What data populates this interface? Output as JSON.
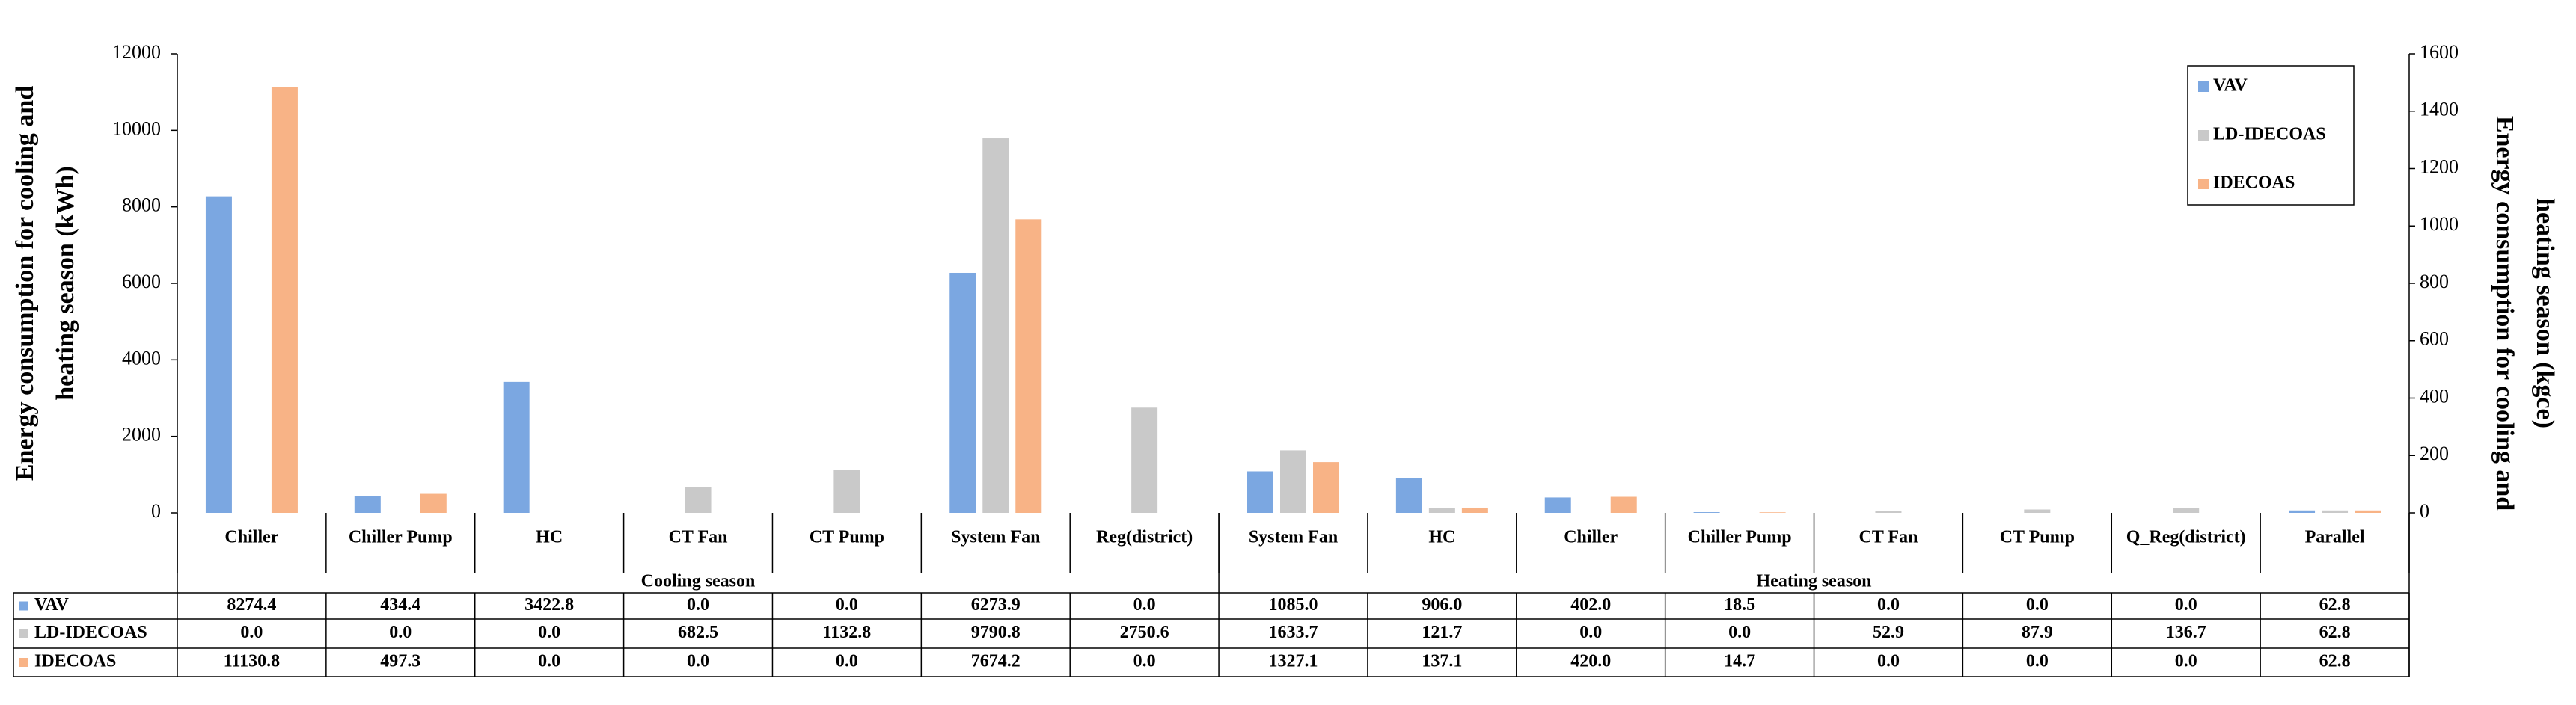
{
  "chart_data": {
    "type": "bar",
    "ylabel": [
      "Energy consumption for cooling and",
      "heating season (kWh)"
    ],
    "y2label": [
      "Energy consumption for cooling and",
      "heating season (kgce)"
    ],
    "groups": [
      {
        "label": "Cooling season",
        "categories": [
          "Chiller",
          "Chiller Pump",
          "HC",
          "CT Fan",
          "CT Pump",
          "System Fan",
          "Reg(district)"
        ]
      },
      {
        "label": "Heating season",
        "categories": [
          "System Fan",
          "HC",
          "Chiller",
          "Chiller Pump",
          "CT Fan",
          "CT Pump",
          "Q_Reg(district)",
          "Parallel"
        ]
      }
    ],
    "series": [
      {
        "name": "VAV",
        "color": "#7ba7e1",
        "values": [
          8274.4,
          434.4,
          3422.8,
          0,
          0,
          6273.9,
          0,
          1085,
          906,
          402,
          18.5,
          0,
          0,
          0,
          62.8
        ],
        "value_labels": [
          "8274.4",
          "434.4",
          "3422.8",
          "0.0",
          "0.0",
          "6273.9",
          "0.0",
          "1085.0",
          "906.0",
          "402.0",
          "18.5",
          "0.0",
          "0.0",
          "0.0",
          "62.8"
        ]
      },
      {
        "name": "LD-IDECOAS",
        "color": "#c9c9c9",
        "values": [
          0,
          0,
          0,
          682.5,
          1132.8,
          9790.8,
          2750.6,
          1633.7,
          121.7,
          0,
          0,
          52.9,
          87.9,
          136.7,
          62.8
        ],
        "value_labels": [
          "0.0",
          "0.0",
          "0.0",
          "682.5",
          "1132.8",
          "9790.8",
          "2750.6",
          "1633.7",
          "121.7",
          "0.0",
          "0.0",
          "52.9",
          "87.9",
          "136.7",
          "62.8"
        ]
      },
      {
        "name": "IDECOAS",
        "color": "#f8b386",
        "values": [
          11130.8,
          497.3,
          0,
          0,
          0,
          7674.2,
          0,
          1327.1,
          137.1,
          420,
          14.7,
          0,
          0,
          0,
          62.8
        ],
        "value_labels": [
          "11130.8",
          "497.3",
          "0.0",
          "0.0",
          "0.0",
          "7674.2",
          "0.0",
          "1327.1",
          "137.1",
          "420.0",
          "14.7",
          "0.0",
          "0.0",
          "0.0",
          "62.8"
        ]
      }
    ],
    "ylim": [
      0,
      12000
    ],
    "yticks": [
      0,
      2000,
      4000,
      6000,
      8000,
      10000,
      12000
    ],
    "y2lim": [
      0,
      1600
    ],
    "y2ticks": [
      0,
      200,
      400,
      600,
      800,
      1000,
      1200,
      1400,
      1600
    ],
    "grid": false,
    "legend": "upper right"
  }
}
